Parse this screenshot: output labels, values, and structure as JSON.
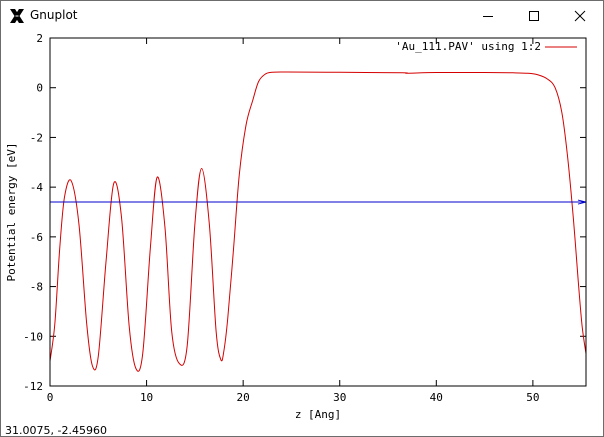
{
  "window": {
    "title": "Gnuplot",
    "icon": "gnuplot-x-icon",
    "controls": [
      "minimize-icon",
      "maximize-icon",
      "close-icon"
    ]
  },
  "status": {
    "coordinates": "31.0075, -2.45960"
  },
  "colors": {
    "series": "#d40000",
    "reference_line": "#0000cc",
    "border": "#000000"
  },
  "chart_data": {
    "type": "line",
    "title": "",
    "xlabel": "z [Ang]",
    "ylabel": "Potential energy [eV]",
    "xlim": [
      0,
      55.5
    ],
    "ylim": [
      -12,
      2
    ],
    "x_ticks": [
      0,
      10,
      20,
      30,
      40,
      50
    ],
    "x_tick_labels": [
      "0",
      "10",
      "20",
      "30",
      "40",
      "50"
    ],
    "y_ticks": [
      2,
      0,
      -2,
      -4,
      -6,
      -8,
      -10,
      -12
    ],
    "y_tick_labels": [
      "2",
      "0",
      "-2",
      "-4",
      "-6",
      "-8",
      "-10",
      "-12"
    ],
    "grid": false,
    "legend_position": "top-right",
    "series": [
      {
        "name": "'Au_111.PAV' using 1:2",
        "color": "#d40000",
        "x": [
          0,
          0.5,
          1,
          1.5,
          2.2,
          3,
          3.8,
          4.4,
          5,
          5.8,
          6.6,
          7.4,
          8.2,
          8.9,
          9.6,
          10.4,
          11.1,
          11.9,
          12.6,
          13.4,
          14.2,
          15,
          15.7,
          16.5,
          17.2,
          17.7,
          18,
          18.4,
          19,
          19.6,
          20.3,
          21,
          21.6,
          22.3,
          23,
          24.5,
          30,
          36.5,
          37,
          40,
          45,
          48,
          49.5,
          50.5,
          51.5,
          52.3,
          53,
          53.6,
          54.2,
          54.7,
          55.1,
          55.5
        ],
        "y": [
          -11,
          -9.5,
          -6.5,
          -4.4,
          -3.75,
          -5.5,
          -9.5,
          -11.2,
          -10.8,
          -7.0,
          -3.85,
          -5.2,
          -9.6,
          -11.3,
          -10.7,
          -6.4,
          -3.6,
          -5.6,
          -9.8,
          -11.1,
          -10.4,
          -5.5,
          -3.25,
          -5.5,
          -9.8,
          -10.95,
          -10.6,
          -9.3,
          -6.5,
          -3.5,
          -1.5,
          -0.5,
          0.25,
          0.55,
          0.62,
          0.63,
          0.62,
          0.6,
          0.58,
          0.61,
          0.61,
          0.6,
          0.58,
          0.52,
          0.35,
          0.0,
          -1.0,
          -2.8,
          -5.3,
          -7.8,
          -9.6,
          -10.7
        ]
      },
      {
        "name": "",
        "color": "#0000cc",
        "x": [
          0,
          55.5
        ],
        "y": [
          -4.6,
          -4.6
        ]
      }
    ]
  }
}
